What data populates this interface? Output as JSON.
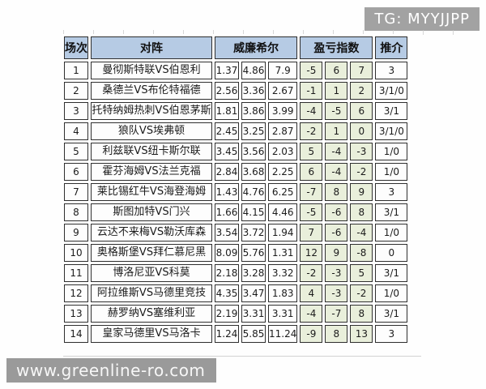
{
  "badges": {
    "telegram": "TG: MYYJJPP",
    "watermark": "www.greenline-ro.com"
  },
  "table": {
    "headers": {
      "match_no": "场次",
      "fixture": "对阵",
      "william_hill": "威廉希尔",
      "profit_loss_index": "盈亏指数",
      "recommendation": "推介"
    },
    "rows": [
      {
        "no": "1",
        "fixture": "曼彻斯特联VS伯恩利",
        "odds": [
          "1.37",
          "4.86",
          "7.9"
        ],
        "index": [
          "-5",
          "6",
          "7"
        ],
        "pick": "3"
      },
      {
        "no": "2",
        "fixture": "桑德兰VS布伦特福德",
        "odds": [
          "2.56",
          "3.36",
          "2.67"
        ],
        "index": [
          "-1",
          "1",
          "2"
        ],
        "pick": "3/1/0"
      },
      {
        "no": "3",
        "fixture": "托特纳姆热刺VS伯恩茅斯",
        "odds": [
          "1.81",
          "3.86",
          "3.99"
        ],
        "index": [
          "-4",
          "-5",
          "6"
        ],
        "pick": "3/1"
      },
      {
        "no": "4",
        "fixture": "狼队VS埃弗顿",
        "odds": [
          "2.45",
          "3.25",
          "2.87"
        ],
        "index": [
          "-2",
          "1",
          "0"
        ],
        "pick": "3/1/0"
      },
      {
        "no": "5",
        "fixture": "利兹联VS纽卡斯尔联",
        "odds": [
          "3.45",
          "3.56",
          "2.03"
        ],
        "index": [
          "5",
          "-4",
          "-3"
        ],
        "pick": "1/0"
      },
      {
        "no": "6",
        "fixture": "霍芬海姆VS法兰克福",
        "odds": [
          "2.84",
          "3.68",
          "2.25"
        ],
        "index": [
          "6",
          "-4",
          "-2"
        ],
        "pick": "1/0"
      },
      {
        "no": "7",
        "fixture": "莱比锡红牛VS海登海姆",
        "odds": [
          "1.43",
          "4.76",
          "6.25"
        ],
        "index": [
          "-7",
          "8",
          "9"
        ],
        "pick": "3"
      },
      {
        "no": "8",
        "fixture": "斯图加特VS门兴",
        "odds": [
          "1.66",
          "4.15",
          "4.46"
        ],
        "index": [
          "-5",
          "-6",
          "8"
        ],
        "pick": "3/1"
      },
      {
        "no": "9",
        "fixture": "云达不来梅VS勒沃库森",
        "odds": [
          "3.54",
          "3.72",
          "1.94"
        ],
        "index": [
          "7",
          "-6",
          "-4"
        ],
        "pick": "1/0"
      },
      {
        "no": "10",
        "fixture": "奥格斯堡VS拜仁慕尼黑",
        "odds": [
          "8.09",
          "5.76",
          "1.31"
        ],
        "index": [
          "12",
          "9",
          "-8"
        ],
        "pick": "0"
      },
      {
        "no": "11",
        "fixture": "博洛尼亚VS科莫",
        "odds": [
          "2.18",
          "3.28",
          "3.32"
        ],
        "index": [
          "-2",
          "-3",
          "5"
        ],
        "pick": "3/1"
      },
      {
        "no": "12",
        "fixture": "阿拉维斯VS马德里竞技",
        "odds": [
          "4.35",
          "3.47",
          "1.83"
        ],
        "index": [
          "4",
          "-3",
          "-2"
        ],
        "pick": "1/0"
      },
      {
        "no": "13",
        "fixture": "赫罗纳VS塞维利亚",
        "odds": [
          "2.19",
          "3.31",
          "3.31"
        ],
        "index": [
          "-4",
          "-7",
          "8"
        ],
        "pick": "3/1"
      },
      {
        "no": "14",
        "fixture": "皇家马德里VS马洛卡",
        "odds": [
          "1.24",
          "5.85",
          "11.24"
        ],
        "index": [
          "-9",
          "8",
          "13"
        ],
        "pick": "3"
      }
    ]
  },
  "colors": {
    "header_bg": "#b6cbe4",
    "index_cell_bg": "#e9efdb",
    "cell_bg": "#fdfdfd",
    "grid_border": "#2e2e2e",
    "badge_bg": "#a2a2a2",
    "watermark_bg": "#9a9a9a"
  }
}
